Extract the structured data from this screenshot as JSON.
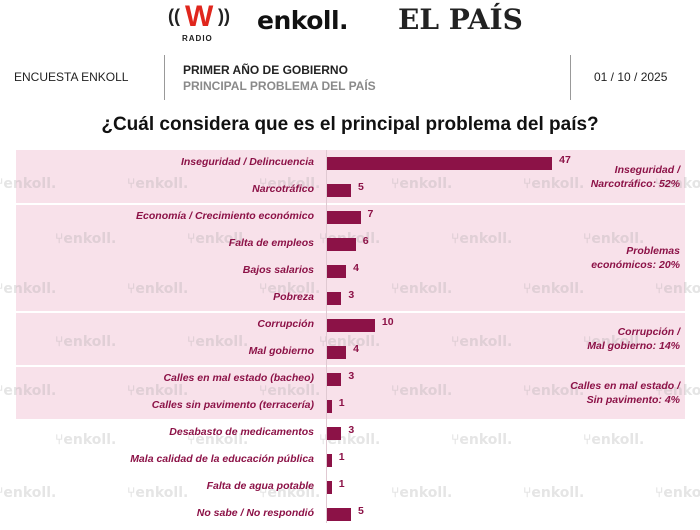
{
  "logos": {
    "w_radio_mark": "W",
    "w_radio_sub": "RADIO",
    "enkoll": "enkoll.",
    "el_pais": "EL PAÍS"
  },
  "header": {
    "left": "ENCUESTA ENKOLL",
    "subtitle_top": "PRIMER AÑO DE GOBIERNO",
    "subtitle_bottom": "PRINCIPAL PROBLEMA DEL PAÍS",
    "date": "01 / 10 / 2025"
  },
  "watermark": "enkoll.",
  "colors": {
    "bar": "#8c1247",
    "band": "#f8e1ea",
    "label": "#8c1247"
  },
  "chart_data": {
    "type": "bar",
    "orientation": "horizontal",
    "title": "¿Cuál considera que es el principal problema del país?",
    "xlabel": "",
    "ylabel": "",
    "xlim": [
      0,
      50
    ],
    "grid": false,
    "categories": [
      "Inseguridad / Delincuencia",
      "Narcotráfico",
      "Economía / Crecimiento económico",
      "Falta de empleos",
      "Bajos salarios",
      "Pobreza",
      "Corrupción",
      "Mal gobierno",
      "Calles en mal estado (bacheo)",
      "Calles sin pavimento (terracería)",
      "Desabasto de medicamentos",
      "Mala calidad de la educación pública",
      "Falta de agua potable",
      "No sabe / No respondió"
    ],
    "values": [
      47,
      5,
      7,
      6,
      4,
      3,
      10,
      4,
      3,
      1,
      3,
      1,
      1,
      5
    ],
    "value_labels": [
      "47",
      "5",
      "7",
      "6",
      "4",
      "3",
      "10",
      "4",
      "3",
      "1",
      "3",
      "1",
      "1",
      "5"
    ],
    "groups": [
      {
        "label_line1": "Inseguridad /",
        "label_line2": "Narcotráfico: 52%",
        "start": 0,
        "end": 1
      },
      {
        "label_line1": "Problemas",
        "label_line2": "económicos: 20%",
        "start": 2,
        "end": 5
      },
      {
        "label_line1": "Corrupción /",
        "label_line2": "Mal gobierno: 14%",
        "start": 6,
        "end": 7
      },
      {
        "label_line1": "Calles en mal estado /",
        "label_line2": "Sin pavimento: 4%",
        "start": 8,
        "end": 9
      }
    ]
  }
}
